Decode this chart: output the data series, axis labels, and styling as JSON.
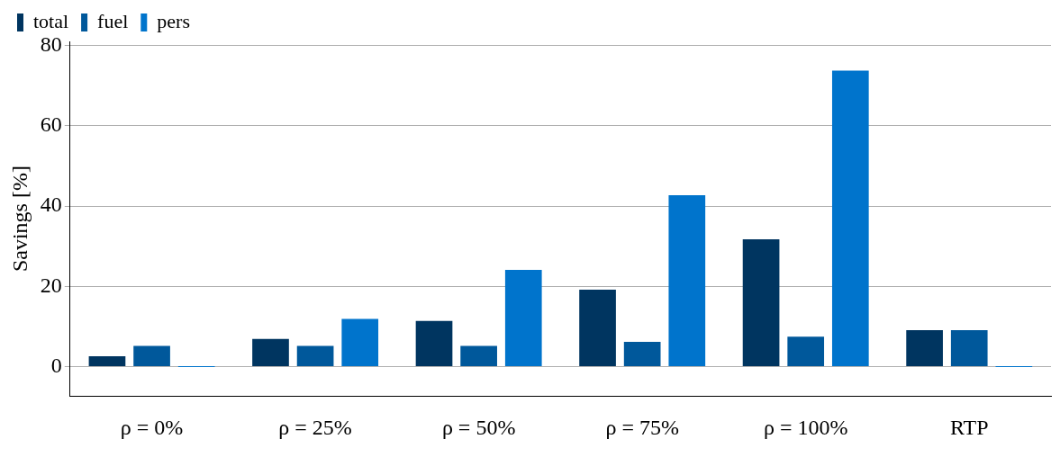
{
  "chart_data": {
    "type": "bar",
    "ylabel": "Savings [%]",
    "categories": [
      "ρ = 0%",
      "ρ = 25%",
      "ρ = 50%",
      "ρ = 75%",
      "ρ = 100%",
      "RTP"
    ],
    "series": [
      {
        "name": "total",
        "color": "#003560",
        "values": [
          2.6,
          6.9,
          11.4,
          19.2,
          31.7,
          9.1
        ]
      },
      {
        "name": "fuel",
        "color": "#00589b",
        "values": [
          5.2,
          5.2,
          5.2,
          6.2,
          7.5,
          9.1
        ]
      },
      {
        "name": "pers",
        "color": "#0074cc",
        "values": [
          0,
          11.9,
          24.1,
          42.7,
          73.7,
          0
        ]
      }
    ],
    "ylim": [
      -7.3,
      81
    ],
    "yticks": [
      0,
      20,
      40,
      60,
      80
    ],
    "grid": "y",
    "legend": "top left"
  }
}
